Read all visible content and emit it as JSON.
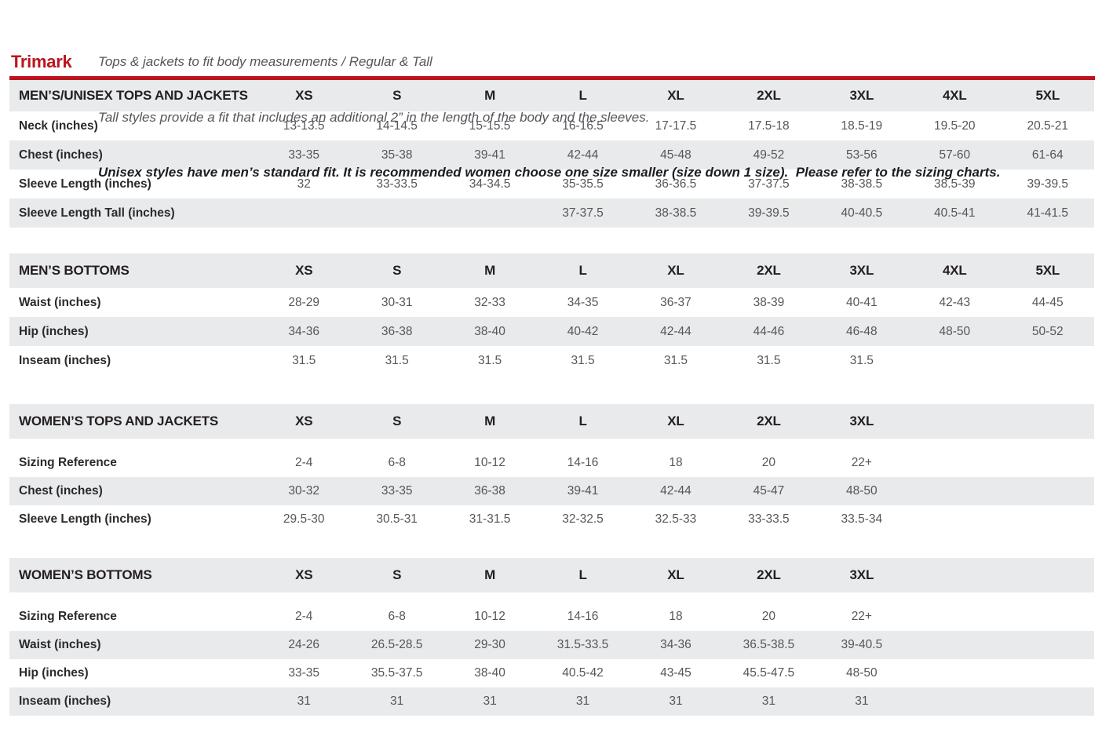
{
  "page": {
    "brand": "Trimark",
    "intro_lines": [
      "Tops & jackets to fit body measurements / Regular & Tall",
      "Tall styles provide a fit that includes an additional 2” in the length of the body and the sleeves.",
      "Unisex styles have men’s standard fit. It is recommended women choose one size smaller (size down 1 size).  Please refer to the sizing charts."
    ],
    "colors": {
      "accent_red": "#bc141f",
      "row_stripe_gray": "#e9eaeb",
      "value_text_gray": "#55565c",
      "label_text_black": "#231f20"
    }
  },
  "tables": [
    {
      "title": "MEN’S/UNISEX TOPS AND JACKETS",
      "columns": [
        "XS",
        "S",
        "M",
        "L",
        "XL",
        "2XL",
        "3XL",
        "4XL",
        "5XL"
      ],
      "header_gap": false,
      "rows": [
        {
          "label": "Neck (inches)",
          "values": [
            "13-13.5",
            "14-14.5",
            "15-15.5",
            "16-16.5",
            "17-17.5",
            "17.5-18",
            "18.5-19",
            "19.5-20",
            "20.5-21"
          ]
        },
        {
          "label": "Chest (inches)",
          "values": [
            "33-35",
            "35-38",
            "39-41",
            "42-44",
            "45-48",
            "49-52",
            "53-56",
            "57-60",
            "61-64"
          ]
        },
        {
          "label": "Sleeve Length (inches)",
          "values": [
            "32",
            "33-33.5",
            "34-34.5",
            "35-35.5",
            "36-36.5",
            "37-37.5",
            "38-38.5",
            "38.5-39",
            "39-39.5"
          ]
        },
        {
          "label": "Sleeve Length Tall (inches)",
          "values": [
            "",
            "",
            "",
            "37-37.5",
            "38-38.5",
            "39-39.5",
            "40-40.5",
            "40.5-41",
            "41-41.5"
          ]
        }
      ]
    },
    {
      "title": "MEN’S BOTTOMS",
      "columns": [
        "XS",
        "S",
        "M",
        "L",
        "XL",
        "2XL",
        "3XL",
        "4XL",
        "5XL"
      ],
      "header_gap": false,
      "rows": [
        {
          "label": "Waist (inches)",
          "values": [
            "28-29",
            "30-31",
            "32-33",
            "34-35",
            "36-37",
            "38-39",
            "40-41",
            "42-43",
            "44-45"
          ]
        },
        {
          "label": "Hip (inches)",
          "values": [
            "34-36",
            "36-38",
            "38-40",
            "40-42",
            "42-44",
            "44-46",
            "46-48",
            "48-50",
            "50-52"
          ]
        },
        {
          "label": "Inseam (inches)",
          "values": [
            "31.5",
            "31.5",
            "31.5",
            "31.5",
            "31.5",
            "31.5",
            "31.5",
            "",
            ""
          ]
        }
      ]
    },
    {
      "title": "WOMEN’S TOPS AND JACKETS",
      "columns": [
        "XS",
        "S",
        "M",
        "L",
        "XL",
        "2XL",
        "3XL"
      ],
      "header_gap": true,
      "rows": [
        {
          "label": "Sizing Reference",
          "values": [
            "2-4",
            "6-8",
            "10-12",
            "14-16",
            "18",
            "20",
            "22+"
          ]
        },
        {
          "label": "Chest (inches)",
          "values": [
            "30-32",
            "33-35",
            "36-38",
            "39-41",
            "42-44",
            "45-47",
            "48-50"
          ]
        },
        {
          "label": "Sleeve Length (inches)",
          "values": [
            "29.5-30",
            "30.5-31",
            "31-31.5",
            "32-32.5",
            "32.5-33",
            "33-33.5",
            "33.5-34"
          ]
        }
      ]
    },
    {
      "title": "WOMEN’S BOTTOMS",
      "columns": [
        "XS",
        "S",
        "M",
        "L",
        "XL",
        "2XL",
        "3XL"
      ],
      "header_gap": true,
      "rows": [
        {
          "label": "Sizing Reference",
          "values": [
            "2-4",
            "6-8",
            "10-12",
            "14-16",
            "18",
            "20",
            "22+"
          ]
        },
        {
          "label": "Waist (inches)",
          "values": [
            "24-26",
            "26.5-28.5",
            "29-30",
            "31.5-33.5",
            "34-36",
            "36.5-38.5",
            "39-40.5"
          ]
        },
        {
          "label": "Hip (inches)",
          "values": [
            "33-35",
            "35.5-37.5",
            "38-40",
            "40.5-42",
            "43-45",
            "45.5-47.5",
            "48-50"
          ]
        },
        {
          "label": "Inseam (inches)",
          "values": [
            "31",
            "31",
            "31",
            "31",
            "31",
            "31",
            "31"
          ]
        }
      ]
    }
  ]
}
